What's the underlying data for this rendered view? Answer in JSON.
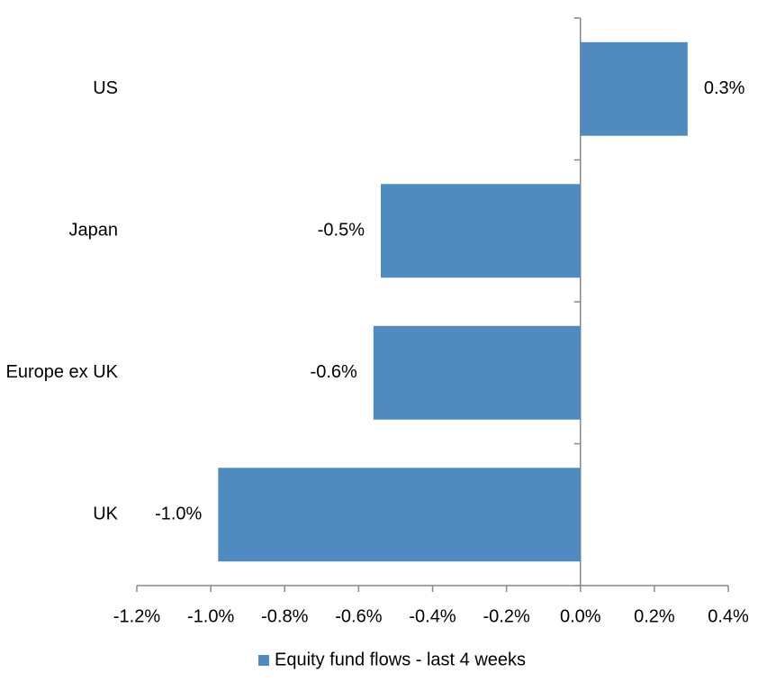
{
  "chart_data": {
    "type": "bar",
    "orientation": "horizontal",
    "categories": [
      "US",
      "Japan",
      "Europe ex UK",
      "UK"
    ],
    "series": [
      {
        "name": "Equity fund flows - last 4 weeks",
        "color": "#4f8bc0",
        "values": [
          0.29,
          -0.54,
          -0.56,
          -0.98
        ],
        "value_labels": [
          "0.3%",
          "-0.5%",
          "-0.6%",
          "-1.0%"
        ]
      }
    ],
    "xlim": [
      -1.2,
      0.4
    ],
    "xticks": [
      {
        "value": -1.2,
        "label": "-1.2%"
      },
      {
        "value": -1.0,
        "label": "-1.0%"
      },
      {
        "value": -0.8,
        "label": "-0.8%"
      },
      {
        "value": -0.6,
        "label": "-0.6%"
      },
      {
        "value": -0.4,
        "label": "-0.4%"
      },
      {
        "value": -0.2,
        "label": "-0.2%"
      },
      {
        "value": 0.0,
        "label": "0.0%"
      },
      {
        "value": 0.2,
        "label": "0.2%"
      },
      {
        "value": 0.4,
        "label": "0.4%"
      }
    ],
    "legend": "bottom",
    "grid": false
  }
}
